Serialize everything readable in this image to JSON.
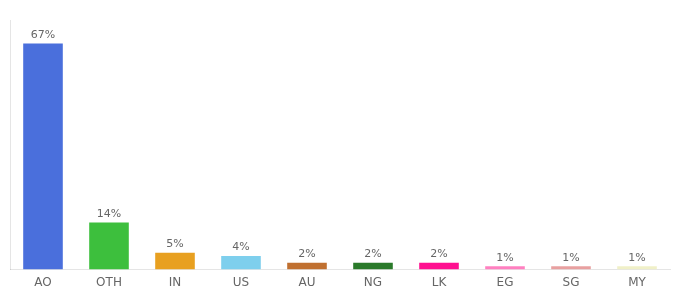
{
  "chart_data": {
    "type": "bar",
    "categories": [
      "AO",
      "OTH",
      "IN",
      "US",
      "AU",
      "NG",
      "LK",
      "EG",
      "SG",
      "MY"
    ],
    "values": [
      67,
      14,
      5,
      4,
      2,
      2,
      2,
      1,
      1,
      1
    ],
    "value_labels": [
      "67%",
      "14%",
      "5%",
      "4%",
      "2%",
      "2%",
      "2%",
      "1%",
      "1%",
      "1%"
    ],
    "colors": [
      "#4a6fdc",
      "#3dbf3d",
      "#e8a020",
      "#7ecfed",
      "#c07030",
      "#2a7a2a",
      "#ff1090",
      "#ff80c0",
      "#e8a0a0",
      "#f0f0c8"
    ],
    "ylim": [
      0,
      74
    ],
    "data_labels": true,
    "tick_labels": "x",
    "grid": false
  }
}
